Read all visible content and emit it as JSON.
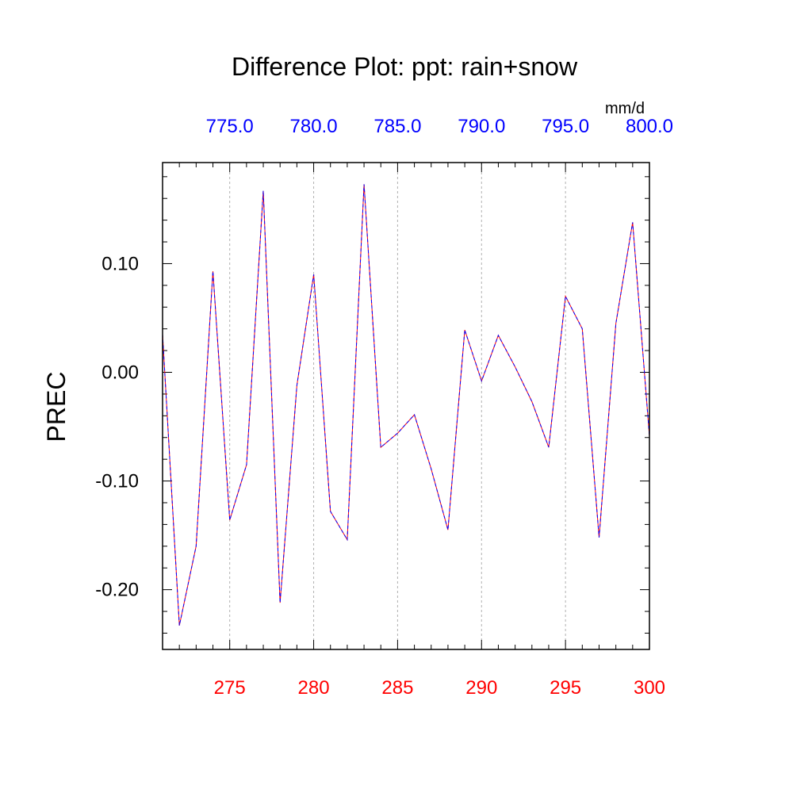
{
  "chart_data": {
    "type": "line",
    "title": "Difference Plot: ppt: rain+snow",
    "ylabel": "PREC",
    "units": "mm/d",
    "xlim": [
      271,
      300
    ],
    "ylim": [
      -0.255,
      0.193
    ],
    "bottom_ticks": [
      "275",
      "280",
      "285",
      "290",
      "295",
      "300"
    ],
    "bottom_tick_values": [
      275,
      280,
      285,
      290,
      295,
      300
    ],
    "top_ticks": [
      "775.0",
      "780.0",
      "785.0",
      "790.0",
      "795.0",
      "800.0"
    ],
    "left_ticks": [
      "0.10",
      "0.00",
      "-0.10",
      "-0.20"
    ],
    "left_tick_values": [
      0.1,
      0.0,
      -0.1,
      -0.2
    ],
    "grid": "vertical dashed at major x ticks",
    "colors": {
      "line_primary": "#ff0000",
      "line_secondary": "#0000ff",
      "bottom_ticks": "#ff0000",
      "top_ticks": "#0000ff",
      "axis": "#000000"
    },
    "series": [
      {
        "x": [
          271,
          272,
          273,
          274,
          275,
          276,
          277,
          278,
          279,
          280,
          281,
          282,
          283,
          284,
          285,
          286,
          287,
          288,
          289,
          290,
          291,
          292,
          293,
          294,
          295,
          296,
          297,
          298,
          299,
          300
        ],
        "values": [
          0.035,
          -0.233,
          -0.16,
          0.093,
          -0.136,
          -0.085,
          0.167,
          -0.212,
          -0.012,
          0.09,
          -0.128,
          -0.154,
          0.173,
          -0.069,
          -0.056,
          -0.039,
          -0.089,
          -0.145,
          0.039,
          -0.008,
          0.034,
          0.005,
          -0.027,
          -0.069,
          0.07,
          0.04,
          -0.152,
          0.045,
          0.138,
          -0.059
        ]
      }
    ]
  }
}
